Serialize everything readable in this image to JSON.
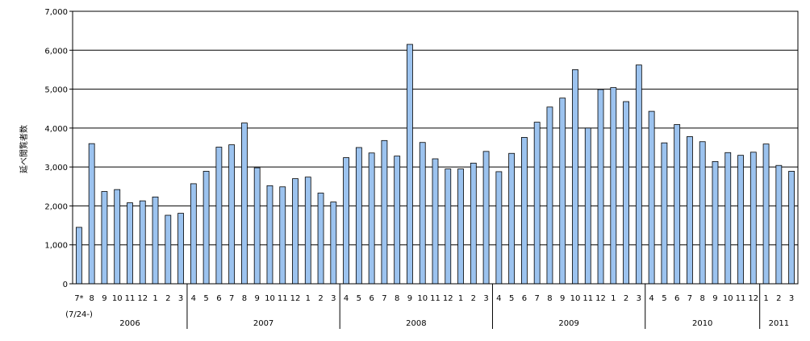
{
  "chart_data": {
    "type": "bar",
    "ylabel": "延べ閲覧者数",
    "ylim": [
      0,
      7000
    ],
    "grid": true,
    "yticks": [
      "0",
      "1,000",
      "2,000",
      "3,000",
      "4,000",
      "5,000",
      "6,000",
      "7,000"
    ],
    "first_label_note": "(7/24-)",
    "categories": [
      "7*",
      "8",
      "9",
      "10",
      "11",
      "12",
      "1",
      "2",
      "3",
      "4",
      "5",
      "6",
      "7",
      "8",
      "9",
      "10",
      "11",
      "12",
      "1",
      "2",
      "3",
      "4",
      "5",
      "6",
      "7",
      "8",
      "9",
      "10",
      "11",
      "12",
      "1",
      "2",
      "3",
      "4",
      "5",
      "6",
      "7",
      "8",
      "9",
      "10",
      "11",
      "12",
      "1",
      "2",
      "3",
      "4",
      "5",
      "6",
      "7",
      "8",
      "9",
      "10",
      "11",
      "12",
      "1",
      "2",
      "3"
    ],
    "values": [
      1450,
      3600,
      2370,
      2420,
      2080,
      2130,
      2230,
      1760,
      1810,
      2570,
      2890,
      3510,
      3570,
      4130,
      2980,
      2520,
      2490,
      2700,
      2740,
      2330,
      2100,
      3240,
      3500,
      3360,
      3680,
      3280,
      6150,
      3630,
      3210,
      2950,
      2950,
      3100,
      3400,
      2880,
      3350,
      3760,
      4150,
      4540,
      4770,
      5500,
      4000,
      4990,
      5040,
      4680,
      5620,
      4430,
      3620,
      4090,
      3780,
      3650,
      3140,
      3370,
      3300,
      3380,
      3590,
      3040,
      2890
    ],
    "years": [
      {
        "label": "2006",
        "start": 0,
        "end": 8
      },
      {
        "label": "2007",
        "start": 9,
        "end": 20
      },
      {
        "label": "2008",
        "start": 21,
        "end": 32
      },
      {
        "label": "2009",
        "start": 33,
        "end": 44
      },
      {
        "label": "2010",
        "start": 45,
        "end": 53
      },
      {
        "label": "2011",
        "start": 54,
        "end": 56
      }
    ],
    "colors": {
      "bar_fill": "#9cc3ef",
      "bar_stroke": "#000000",
      "grid": "#000000"
    }
  }
}
